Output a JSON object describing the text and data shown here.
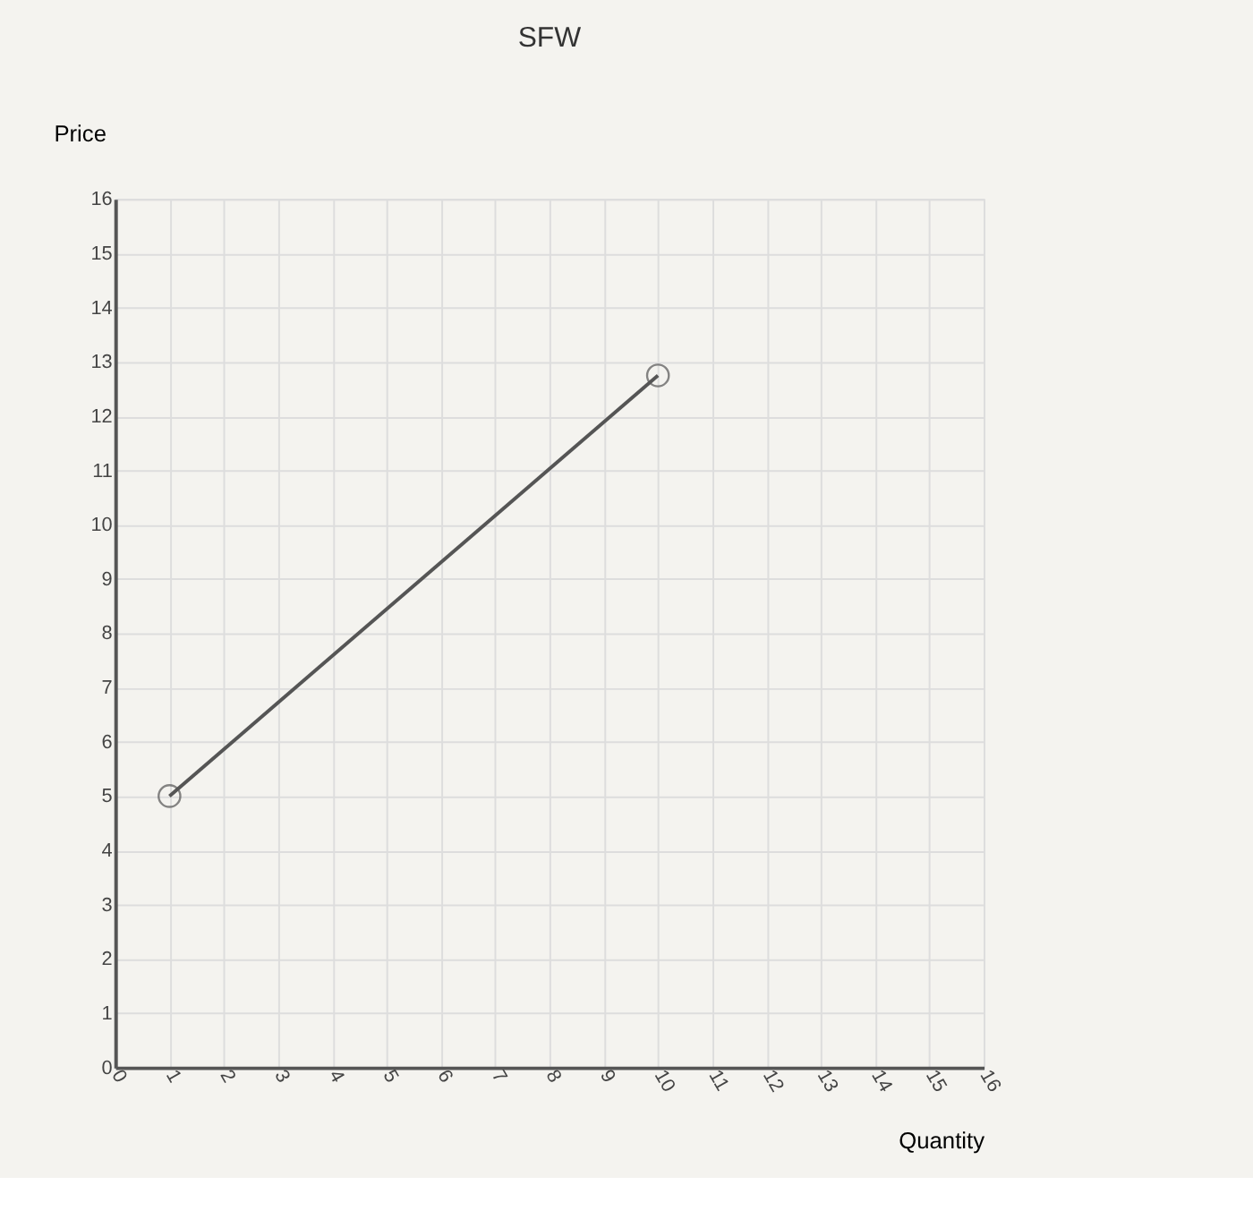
{
  "chart_data": {
    "type": "line",
    "title": "SFW",
    "xlabel": "Quantity",
    "ylabel": "Price",
    "x": [
      1,
      10
    ],
    "series": [
      {
        "color": "#555555",
        "values": [
          5,
          12.75
        ]
      }
    ],
    "marker": "circle",
    "line_style": "solid",
    "grid": true,
    "xlim": [
      0,
      16
    ],
    "ylim": [
      0,
      16
    ],
    "xticks": [
      0,
      1,
      2,
      3,
      4,
      5,
      6,
      7,
      8,
      9,
      10,
      11,
      12,
      13,
      14,
      15,
      16
    ],
    "yticks": [
      0,
      1,
      2,
      3,
      4,
      5,
      6,
      7,
      8,
      9,
      10,
      11,
      12,
      13,
      14,
      15,
      16
    ]
  }
}
